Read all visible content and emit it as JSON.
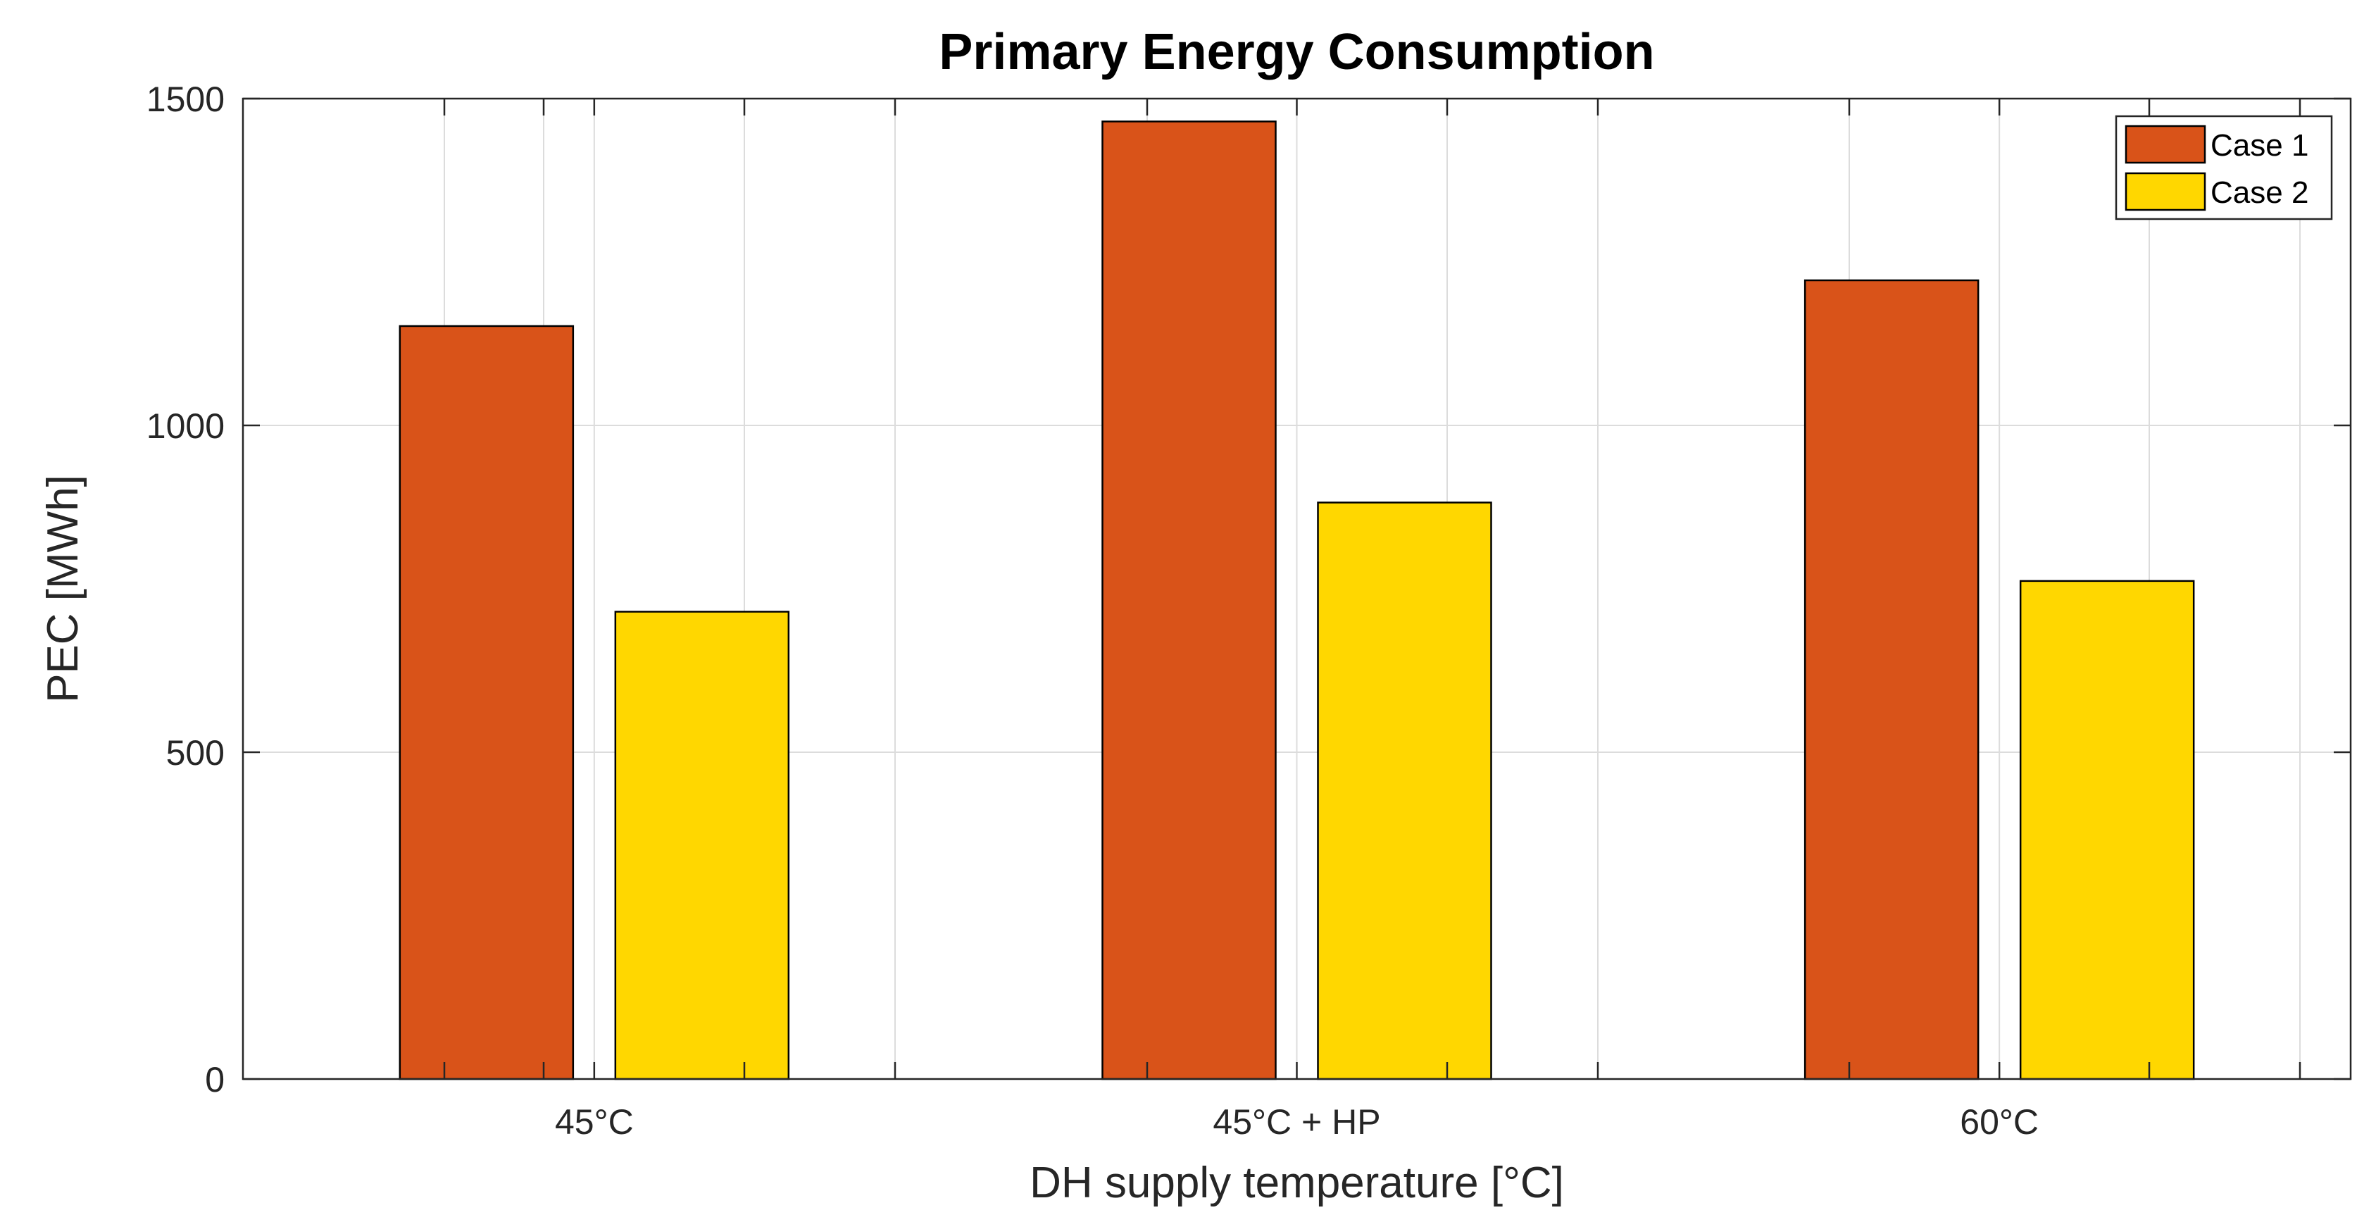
{
  "chart_data": {
    "type": "bar",
    "title": "Primary Energy Consumption",
    "xlabel": "DH supply temperature [°C]",
    "ylabel": "PEC [MWh]",
    "categories": [
      "45°C",
      "45°C + HP",
      "60°C"
    ],
    "series": [
      {
        "name": "Case 1",
        "color": "#D95319",
        "values": [
          1152,
          1465,
          1222
        ]
      },
      {
        "name": "Case 2",
        "color": "#FFD700",
        "values": [
          715,
          882,
          762
        ]
      }
    ],
    "ylim": [
      0,
      1500
    ],
    "yticks": [
      0,
      500,
      1000,
      1500
    ],
    "grid": true,
    "legend_location": "top-right"
  }
}
